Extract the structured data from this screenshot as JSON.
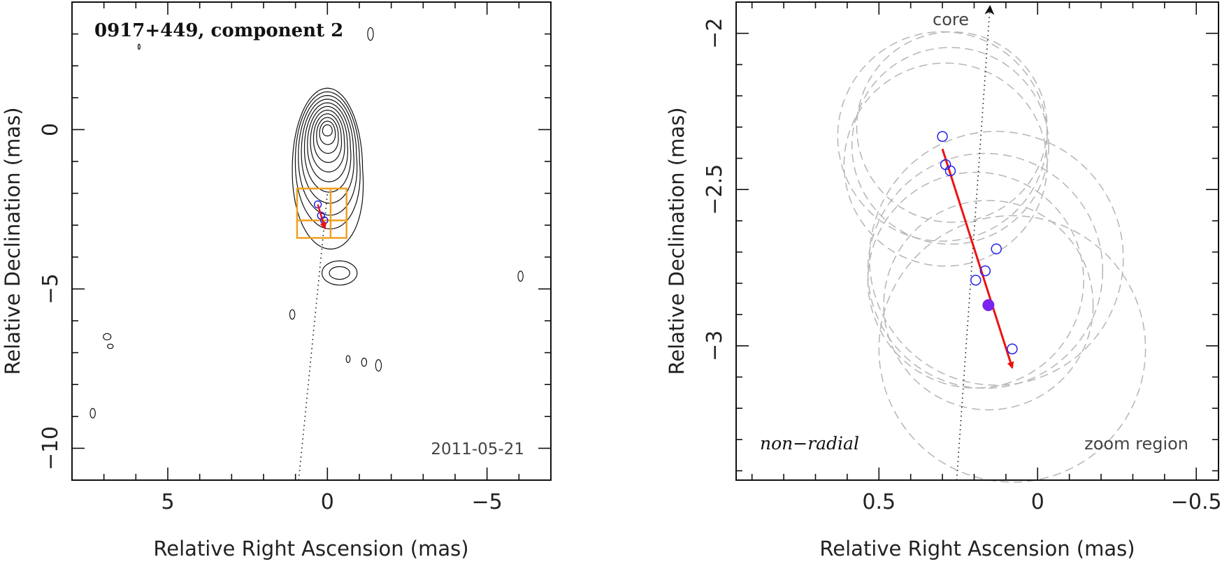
{
  "chart_data": [
    {
      "type": "contour",
      "title": "0917+449, component 2",
      "date": "2011-05-21",
      "xlabel": "Relative Right Ascension (mas)",
      "ylabel": "Relative Declination (mas)",
      "xlim": [
        8,
        -7
      ],
      "ylim": [
        -11,
        4
      ],
      "xticks": [
        5,
        0,
        -5
      ],
      "yticks": [
        0,
        -5,
        -10
      ],
      "xtick_labels": [
        "5",
        "0",
        "−5"
      ],
      "ytick_labels": [
        "0",
        "−5",
        "−10"
      ],
      "contour_levels": 11,
      "core": {
        "x": 0,
        "y": 0
      },
      "contour_colors": "#111111",
      "ridge_line": {
        "from": {
          "x": 0.9,
          "y": -11
        },
        "to": {
          "x": 0,
          "y": -2
        },
        "style": "dotted"
      },
      "zoom_box": {
        "x_range": [
          0.95,
          -0.6
        ],
        "y_range": [
          -1.85,
          -3.4
        ],
        "grid_x": -0.1,
        "grid_y": -2.85,
        "color": "#f0a020"
      },
      "component_points": [
        {
          "x": 0.3,
          "y": -2.35
        },
        {
          "x": 0.2,
          "y": -2.7
        },
        {
          "x": 0.1,
          "y": -2.85
        }
      ],
      "motion_arrow": {
        "from": {
          "x": 0.3,
          "y": -2.35
        },
        "to": {
          "x": 0.08,
          "y": -3.1
        },
        "color": "#ee1111"
      }
    },
    {
      "type": "scatter",
      "xlabel": "Relative Right Ascension (mas)",
      "ylabel": "Relative Declination (mas)",
      "xlim": [
        0.95,
        -0.57
      ],
      "ylim": [
        -3.43,
        -1.9
      ],
      "xticks": [
        0.5,
        0,
        -0.5
      ],
      "yticks": [
        -2,
        -2.5,
        -3
      ],
      "xtick_labels": [
        "0.5",
        "0",
        "−0.5"
      ],
      "ytick_labels": [
        "−2",
        "−2.5",
        "−3"
      ],
      "labels": {
        "core": "core",
        "zoom_region": "zoom region",
        "motion_type": "non−radial"
      },
      "epochs_open": [
        {
          "x": 0.3,
          "y": -2.33
        },
        {
          "x": 0.29,
          "y": -2.42
        },
        {
          "x": 0.275,
          "y": -2.44
        },
        {
          "x": 0.13,
          "y": -2.69
        },
        {
          "x": 0.165,
          "y": -2.76
        },
        {
          "x": 0.195,
          "y": -2.79
        },
        {
          "x": 0.08,
          "y": -3.01
        }
      ],
      "epoch_filled": {
        "x": 0.155,
        "y": -2.87
      },
      "epoch_colors": {
        "open": "#2222ee",
        "filled": "#7a22ee"
      },
      "uncertainty_circles": [
        {
          "x": 0.3,
          "y": -2.33,
          "r": 0.33
        },
        {
          "x": 0.27,
          "y": -2.3,
          "r": 0.3
        },
        {
          "x": 0.29,
          "y": -2.42,
          "r": 0.32
        },
        {
          "x": 0.275,
          "y": -2.36,
          "r": 0.31
        },
        {
          "x": 0.13,
          "y": -2.72,
          "r": 0.4
        },
        {
          "x": 0.165,
          "y": -2.76,
          "r": 0.37
        },
        {
          "x": 0.195,
          "y": -2.79,
          "r": 0.34
        },
        {
          "x": 0.08,
          "y": -3.01,
          "r": 0.42
        },
        {
          "x": 0.155,
          "y": -2.87,
          "r": 0.33
        }
      ],
      "ridge_line": {
        "from": {
          "x": 0.255,
          "y": -3.43
        },
        "to": {
          "x": 0.15,
          "y": -1.9
        },
        "style": "dotted"
      },
      "motion_arrow": {
        "from": {
          "x": 0.3,
          "y": -2.37
        },
        "to": {
          "x": 0.08,
          "y": -3.07
        },
        "color": "#ee1111"
      }
    }
  ]
}
